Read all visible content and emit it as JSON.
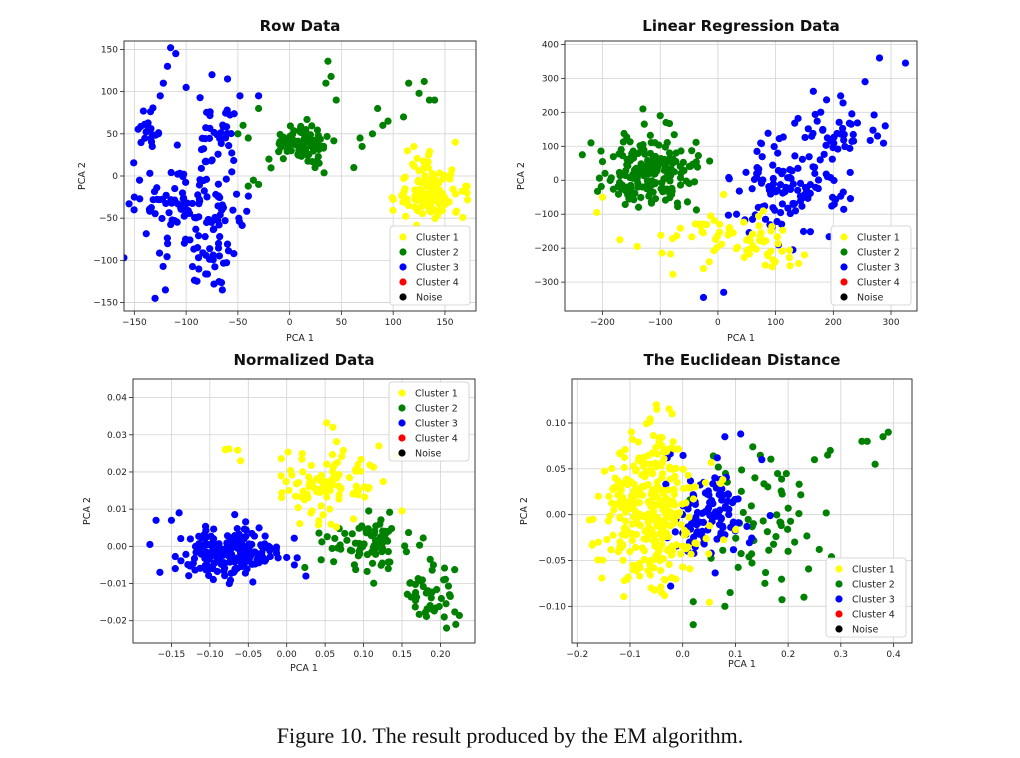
{
  "caption": "Figure 10. The result produced by the EM algorithm.",
  "colors": {
    "Cluster 1": "#ffff00",
    "Cluster 2": "#008000",
    "Cluster 3": "#0000ff",
    "Cluster 4": "#ff0000",
    "Noise": "#000000"
  },
  "chart_data": [
    {
      "type": "scatter",
      "title": "Row Data",
      "xlabel": "PCA 1",
      "ylabel": "PCA 2",
      "xlim": [
        -160,
        180
      ],
      "ylim": [
        -160,
        160
      ],
      "xticks": [
        -150,
        -100,
        -50,
        0,
        50,
        100,
        150
      ],
      "yticks": [
        -150,
        -100,
        -50,
        0,
        50,
        100,
        150
      ],
      "grid": true,
      "legend": "lower right",
      "series": [
        {
          "name": "Cluster 1",
          "clusters": [
            {
              "cx": 137,
              "cy": -22,
              "sx": 16,
              "sy": 14,
              "n": 110
            },
            {
              "cx": 125,
              "cy": 20,
              "sx": 8,
              "sy": 10,
              "n": 12
            }
          ],
          "points": [
            [
              120,
              35
            ],
            [
              160,
              40
            ],
            [
              100,
              -28
            ],
            [
              170,
              -12
            ]
          ]
        },
        {
          "name": "Cluster 2",
          "clusters": [
            {
              "cx": 10,
              "cy": 40,
              "sx": 14,
              "sy": 11,
              "n": 75
            },
            {
              "cx": 30,
              "cy": 25,
              "sx": 6,
              "sy": 8,
              "n": 10
            }
          ],
          "points": [
            [
              37,
              136
            ],
            [
              40,
              118
            ],
            [
              35,
              110
            ],
            [
              45,
              90
            ],
            [
              70,
              35
            ],
            [
              85,
              80
            ],
            [
              90,
              60
            ],
            [
              95,
              65
            ],
            [
              110,
              70
            ],
            [
              115,
              110
            ],
            [
              125,
              98
            ],
            [
              130,
              112
            ],
            [
              135,
              90
            ],
            [
              140,
              90
            ],
            [
              80,
              50
            ],
            [
              62,
              10
            ],
            [
              68,
              45
            ],
            [
              -40,
              45
            ],
            [
              -50,
              50
            ],
            [
              -45,
              60
            ],
            [
              -35,
              -5
            ],
            [
              -30,
              -10
            ],
            [
              -40,
              -12
            ],
            [
              -30,
              80
            ],
            [
              -20,
              20
            ]
          ]
        },
        {
          "name": "Cluster 3",
          "clusters": [
            {
              "cx": -95,
              "cy": -40,
              "sx": 25,
              "sy": 28,
              "n": 120
            },
            {
              "cx": -135,
              "cy": 50,
              "sx": 8,
              "sy": 12,
              "n": 22
            },
            {
              "cx": -70,
              "cy": 50,
              "sx": 12,
              "sy": 20,
              "n": 30
            },
            {
              "cx": -75,
              "cy": -105,
              "sx": 10,
              "sy": 15,
              "n": 18
            }
          ],
          "points": [
            [
              -115,
              152
            ],
            [
              -110,
              145
            ],
            [
              -118,
              130
            ],
            [
              -122,
              110
            ],
            [
              -125,
              95
            ],
            [
              -75,
              120
            ],
            [
              -60,
              115
            ],
            [
              -100,
              105
            ],
            [
              -48,
              95
            ],
            [
              -30,
              95
            ],
            [
              -65,
              -135
            ],
            [
              -130,
              -145
            ],
            [
              -120,
              -135
            ],
            [
              -150,
              -25
            ],
            [
              -145,
              -5
            ]
          ]
        },
        {
          "name": "Cluster 4",
          "points": []
        },
        {
          "name": "Noise",
          "points": []
        }
      ]
    },
    {
      "type": "scatter",
      "title": "Linear Regression Data",
      "xlabel": "PCA 1",
      "ylabel": "PCA 2",
      "xlim": [
        -265,
        345
      ],
      "ylim": [
        -385,
        410
      ],
      "xticks": [
        -200,
        -100,
        0,
        100,
        200,
        300
      ],
      "yticks": [
        -300,
        -200,
        -100,
        0,
        100,
        200,
        300,
        400
      ],
      "grid": true,
      "legend": "lower right",
      "series": [
        {
          "name": "Cluster 1",
          "clusters": [
            {
              "cx": 10,
              "cy": -170,
              "sx": 55,
              "sy": 40,
              "n": 55
            },
            {
              "cx": 80,
              "cy": -220,
              "sx": 30,
              "sy": 25,
              "n": 15
            }
          ],
          "points": [
            [
              -210,
              -95
            ],
            [
              -200,
              -50
            ],
            [
              -170,
              -175
            ],
            [
              -140,
              -195
            ],
            [
              -25,
              -260
            ],
            [
              -15,
              -240
            ],
            [
              150,
              -220
            ],
            [
              140,
              -245
            ]
          ]
        },
        {
          "name": "Cluster 2",
          "clusters": [
            {
              "cx": -110,
              "cy": 20,
              "sx": 40,
              "sy": 55,
              "n": 180
            }
          ],
          "points": [
            [
              -235,
              75
            ],
            [
              -220,
              110
            ],
            [
              -130,
              210
            ],
            [
              -100,
              190
            ],
            [
              -90,
              170
            ],
            [
              -200,
              55
            ]
          ]
        },
        {
          "name": "Cluster 3",
          "clusters": [
            {
              "cx": 120,
              "cy": -20,
              "sx": 45,
              "sy": 70,
              "n": 110
            },
            {
              "cx": 210,
              "cy": 140,
              "sx": 35,
              "sy": 55,
              "n": 45
            }
          ],
          "points": [
            [
              280,
              360
            ],
            [
              325,
              345
            ],
            [
              255,
              290
            ],
            [
              290,
              160
            ],
            [
              70,
              -80
            ],
            [
              60,
              -115
            ],
            [
              -25,
              -345
            ],
            [
              10,
              -330
            ],
            [
              105,
              -190
            ],
            [
              130,
              -205
            ]
          ]
        },
        {
          "name": "Cluster 4",
          "points": []
        },
        {
          "name": "Noise",
          "points": []
        }
      ]
    },
    {
      "type": "scatter",
      "title": "Normalized Data",
      "xlabel": "PCA 1",
      "ylabel": "PCA 2",
      "xlim": [
        -0.2,
        0.245
      ],
      "ylim": [
        -0.026,
        0.045
      ],
      "xticks": [
        -0.15,
        -0.1,
        -0.05,
        0.0,
        0.05,
        0.1,
        0.15,
        0.2
      ],
      "yticks": [
        -0.02,
        -0.01,
        0.0,
        0.01,
        0.02,
        0.03,
        0.04
      ],
      "grid": true,
      "legend": "upper right",
      "series": [
        {
          "name": "Cluster 1",
          "clusters": [
            {
              "cx": 0.05,
              "cy": 0.017,
              "sx": 0.035,
              "sy": 0.005,
              "n": 100
            }
          ],
          "points": [
            [
              -0.08,
              0.026
            ],
            [
              -0.075,
              0.0262
            ],
            [
              -0.06,
              0.023
            ],
            [
              0.052,
              0.0332
            ],
            [
              0.06,
              0.032
            ],
            [
              0.15,
              0.0095
            ],
            [
              0.12,
              0.027
            ]
          ]
        },
        {
          "name": "Cluster 2",
          "clusters": [
            {
              "cx": 0.1,
              "cy": 0.0,
              "sx": 0.03,
              "sy": 0.0035,
              "n": 80
            },
            {
              "cx": 0.185,
              "cy": -0.013,
              "sx": 0.015,
              "sy": 0.004,
              "n": 40
            }
          ],
          "points": [
            [
              0.208,
              -0.022
            ],
            [
              0.22,
              -0.021
            ],
            [
              0.205,
              -0.019
            ]
          ]
        },
        {
          "name": "Cluster 3",
          "clusters": [
            {
              "cx": -0.075,
              "cy": -0.002,
              "sx": 0.03,
              "sy": 0.0035,
              "n": 220
            }
          ],
          "points": [
            [
              -0.178,
              0.0005
            ],
            [
              -0.17,
              0.007
            ],
            [
              -0.165,
              -0.007
            ],
            [
              -0.15,
              0.007
            ],
            [
              -0.14,
              0.009
            ],
            [
              -0.145,
              -0.006
            ],
            [
              0.0,
              -0.003
            ],
            [
              0.01,
              -0.005
            ],
            [
              0.025,
              -0.008
            ]
          ]
        },
        {
          "name": "Cluster 4",
          "points": []
        },
        {
          "name": "Noise",
          "points": []
        }
      ]
    },
    {
      "type": "scatter",
      "title": "The Euclidean Distance",
      "xlabel": "PCA 1",
      "ylabel": "PCA 2",
      "xlim": [
        -0.21,
        0.435
      ],
      "ylim": [
        -0.14,
        0.148
      ],
      "xticks": [
        -0.2,
        -0.1,
        0.0,
        0.1,
        0.2,
        0.3,
        0.4
      ],
      "yticks": [
        -0.1,
        -0.05,
        0.0,
        0.05,
        0.1
      ],
      "grid": true,
      "legend": "lower right",
      "series": [
        {
          "name": "Cluster 1",
          "clusters": [
            {
              "cx": -0.06,
              "cy": 0.0,
              "sx": 0.045,
              "sy": 0.04,
              "n": 300
            },
            {
              "cx": -0.04,
              "cy": 0.06,
              "sx": 0.025,
              "sy": 0.02,
              "n": 30
            }
          ],
          "points": [
            [
              -0.17,
              -0.005
            ],
            [
              -0.16,
              0.02
            ],
            [
              -0.16,
              -0.03
            ],
            [
              -0.14,
              0.02
            ],
            [
              -0.05,
              0.12
            ],
            [
              -0.02,
              0.11
            ],
            [
              -0.04,
              -0.085
            ],
            [
              -0.06,
              -0.08
            ]
          ]
        },
        {
          "name": "Cluster 2",
          "clusters": [
            {
              "cx": 0.15,
              "cy": -0.01,
              "sx": 0.06,
              "sy": 0.04,
              "n": 60
            }
          ],
          "points": [
            [
              0.35,
              0.08
            ],
            [
              0.38,
              0.085
            ],
            [
              0.39,
              0.09
            ],
            [
              0.365,
              0.055
            ],
            [
              0.34,
              0.08
            ],
            [
              0.275,
              0.065
            ],
            [
              0.28,
              0.07
            ],
            [
              0.25,
              0.06
            ],
            [
              0.23,
              -0.09
            ],
            [
              0.2,
              -0.04
            ],
            [
              0.02,
              -0.095
            ],
            [
              0.02,
              -0.12
            ],
            [
              0.08,
              -0.1
            ],
            [
              0.09,
              -0.085
            ]
          ]
        },
        {
          "name": "Cluster 3",
          "clusters": [
            {
              "cx": 0.05,
              "cy": 0.0,
              "sx": 0.04,
              "sy": 0.025,
              "n": 110
            }
          ],
          "points": [
            [
              0.11,
              0.088
            ],
            [
              0.08,
              0.085
            ],
            [
              0.15,
              0.06
            ],
            [
              0.01,
              -0.04
            ],
            [
              0.0,
              -0.02
            ]
          ]
        },
        {
          "name": "Cluster 4",
          "points": []
        },
        {
          "name": "Noise",
          "points": []
        }
      ]
    }
  ]
}
